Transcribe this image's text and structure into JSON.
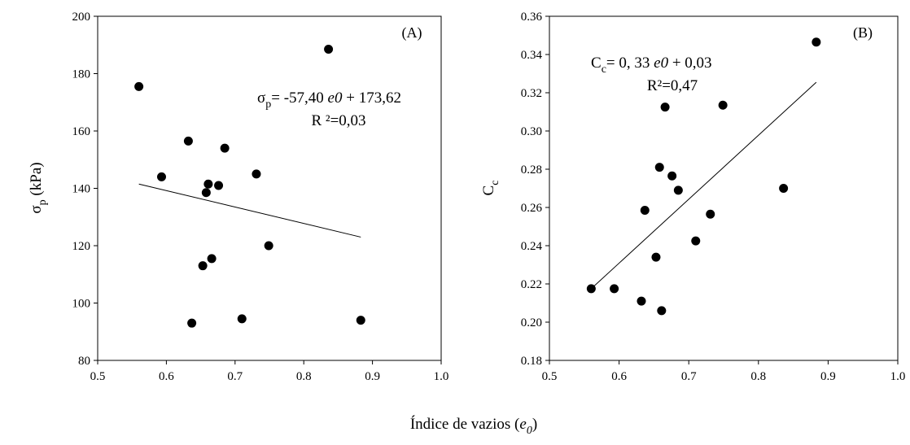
{
  "xlabel_shared": {
    "text": "Índice de vazios (",
    "var": "e",
    "sub": "0",
    "close": ")"
  },
  "chart_data": [
    {
      "type": "scatter",
      "panel_label": "(A)",
      "ylabel": {
        "main": "σ",
        "sub": "p",
        "rest": " (kPa)"
      },
      "xlim": [
        0.5,
        1.0
      ],
      "ylim": [
        80,
        200
      ],
      "xticks": [
        "0.5",
        "0.6",
        "0.7",
        "0.8",
        "0.9",
        "1.0"
      ],
      "yticks": [
        "80",
        "100",
        "120",
        "140",
        "160",
        "180",
        "200"
      ],
      "xtick_values": [
        0.5,
        0.6,
        0.7,
        0.8,
        0.9,
        1.0
      ],
      "ytick_values": [
        80,
        100,
        120,
        140,
        160,
        180,
        200
      ],
      "points": [
        {
          "x": 0.56,
          "y": 175.5
        },
        {
          "x": 0.593,
          "y": 144
        },
        {
          "x": 0.632,
          "y": 156.5
        },
        {
          "x": 0.637,
          "y": 93
        },
        {
          "x": 0.653,
          "y": 113
        },
        {
          "x": 0.658,
          "y": 138.5
        },
        {
          "x": 0.661,
          "y": 141.5
        },
        {
          "x": 0.666,
          "y": 115.5
        },
        {
          "x": 0.676,
          "y": 141
        },
        {
          "x": 0.685,
          "y": 154
        },
        {
          "x": 0.71,
          "y": 94.5
        },
        {
          "x": 0.731,
          "y": 145
        },
        {
          "x": 0.749,
          "y": 120
        },
        {
          "x": 0.836,
          "y": 188.5
        },
        {
          "x": 0.883,
          "y": 94
        }
      ],
      "trendline": {
        "x": [
          0.56,
          0.883
        ],
        "y": [
          141.5,
          123
        ]
      },
      "equation": {
        "lhs_main": "σ",
        "lhs_sub": "p",
        "rhs": "= -57,40 ",
        "var": "e",
        "var_sub": "0",
        "tail": " + 173,62"
      },
      "r2": "R ²=0,03"
    },
    {
      "type": "scatter",
      "panel_label": "(B)",
      "ylabel": {
        "main": "C",
        "sub": "c",
        "rest": ""
      },
      "xlim": [
        0.5,
        1.0
      ],
      "ylim": [
        0.18,
        0.36
      ],
      "xticks": [
        "0.5",
        "0.6",
        "0.7",
        "0.8",
        "0.9",
        "1.0"
      ],
      "yticks": [
        "0.18",
        "0.20",
        "0.22",
        "0.24",
        "0.26",
        "0.28",
        "0.30",
        "0.32",
        "0.34",
        "0.36"
      ],
      "xtick_values": [
        0.5,
        0.6,
        0.7,
        0.8,
        0.9,
        1.0
      ],
      "ytick_values": [
        0.18,
        0.2,
        0.22,
        0.24,
        0.26,
        0.28,
        0.3,
        0.32,
        0.34,
        0.36
      ],
      "points": [
        {
          "x": 0.56,
          "y": 0.2175
        },
        {
          "x": 0.593,
          "y": 0.2175
        },
        {
          "x": 0.632,
          "y": 0.211
        },
        {
          "x": 0.637,
          "y": 0.2585
        },
        {
          "x": 0.653,
          "y": 0.234
        },
        {
          "x": 0.658,
          "y": 0.281
        },
        {
          "x": 0.661,
          "y": 0.206
        },
        {
          "x": 0.666,
          "y": 0.3125
        },
        {
          "x": 0.676,
          "y": 0.2765
        },
        {
          "x": 0.685,
          "y": 0.269
        },
        {
          "x": 0.71,
          "y": 0.2425
        },
        {
          "x": 0.731,
          "y": 0.2565
        },
        {
          "x": 0.749,
          "y": 0.3135
        },
        {
          "x": 0.836,
          "y": 0.27
        },
        {
          "x": 0.883,
          "y": 0.3465
        }
      ],
      "trendline": {
        "x": [
          0.56,
          0.883
        ],
        "y": [
          0.2175,
          0.3255
        ]
      },
      "equation": {
        "lhs_main": "C",
        "lhs_sub": "c",
        "rhs": "= 0, 33 ",
        "var": "e",
        "var_sub": "0",
        "tail": " + 0,03"
      },
      "r2": "R²=0,47"
    }
  ]
}
